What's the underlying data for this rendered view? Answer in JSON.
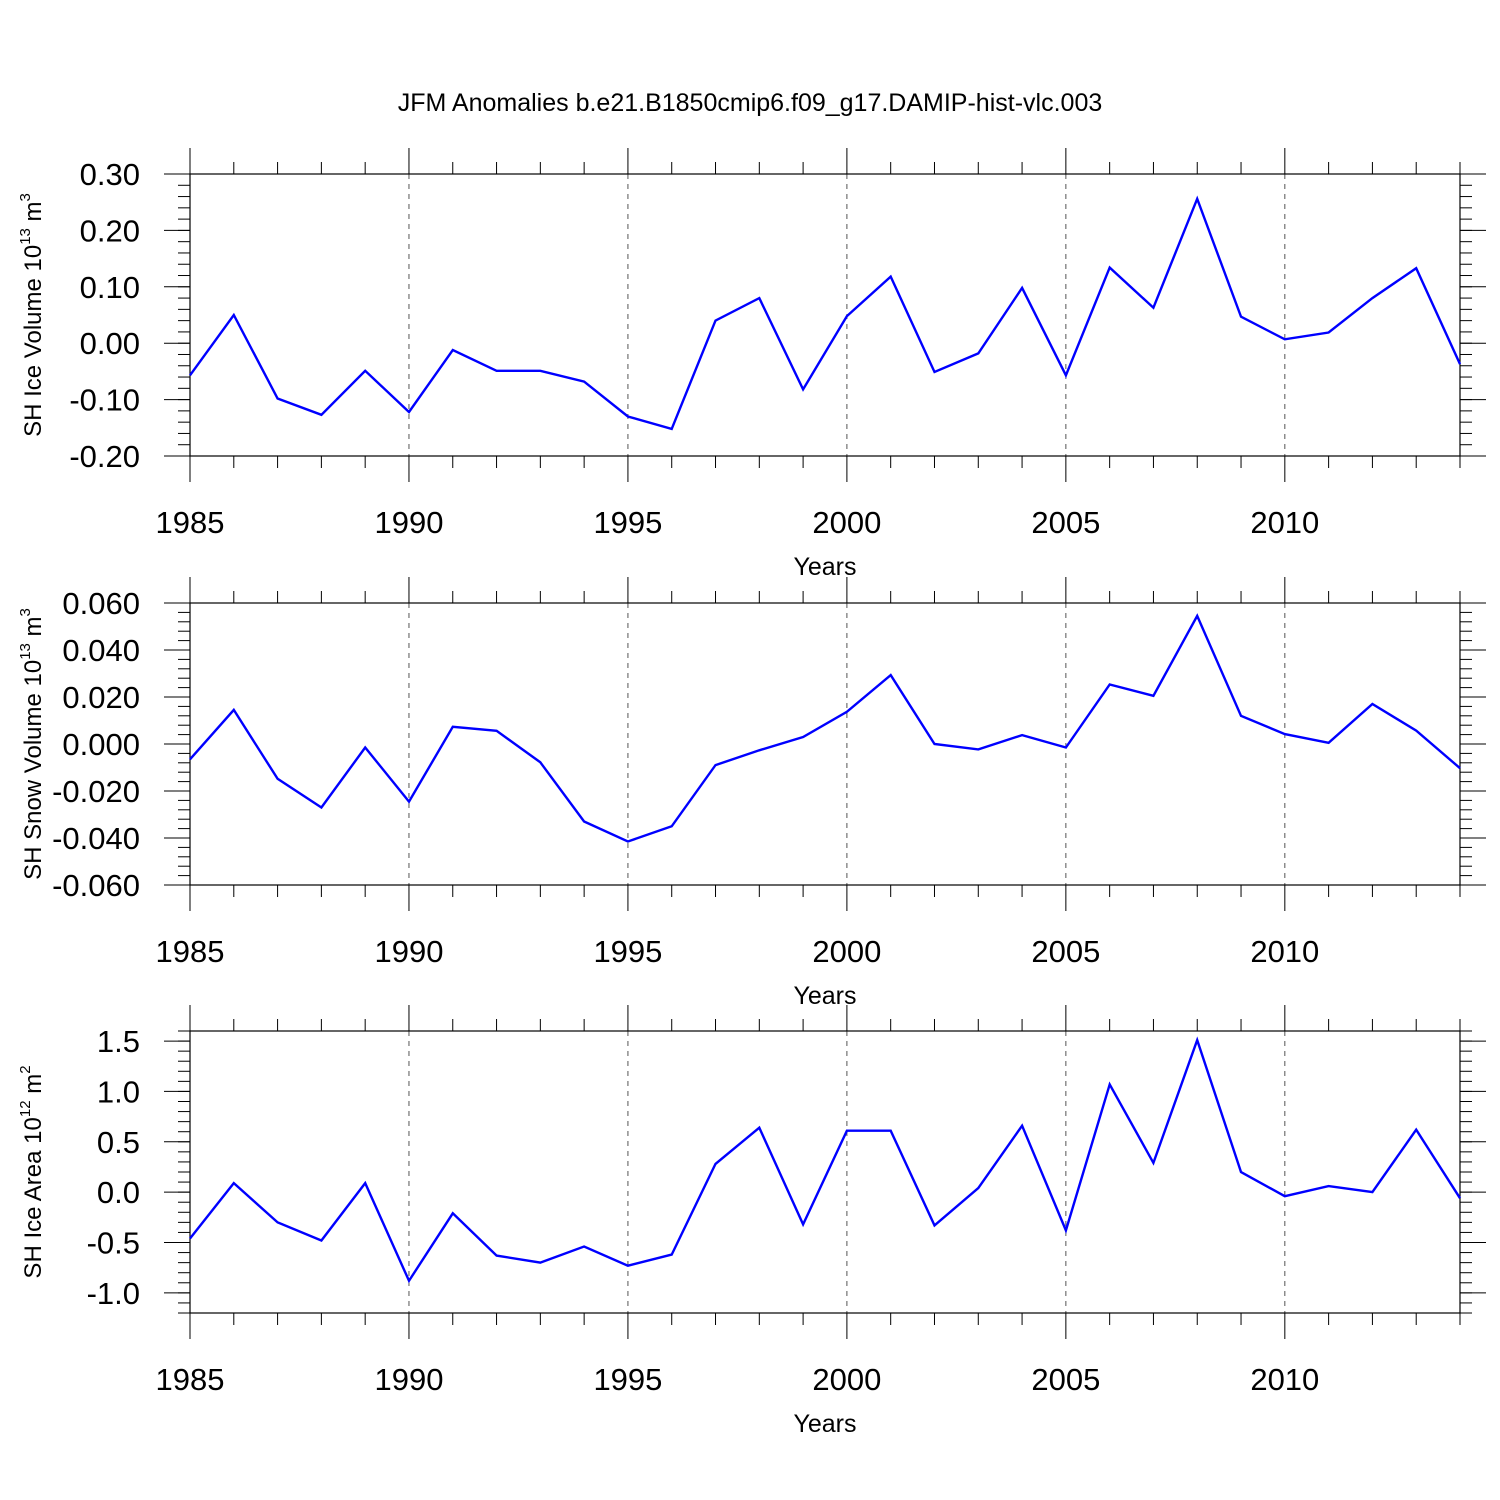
{
  "title": "JFM Anomalies b.e21.B1850cmip6.f09_g17.DAMIP-hist-vlc.003",
  "chart_data": [
    {
      "type": "line",
      "ylabel": {
        "main": "SH Ice Volume 10",
        "exp": "13",
        "unit": " m",
        "unit_exp": "3"
      },
      "xlabel": "Years",
      "xlim": [
        1985,
        2014
      ],
      "ylim": [
        -0.2,
        0.3
      ],
      "yticks": [
        -0.2,
        -0.1,
        0.0,
        0.1,
        0.2,
        0.3
      ],
      "ytick_labels": [
        "-0.20",
        "-0.10",
        "0.00",
        "0.10",
        "0.20",
        "0.30"
      ],
      "xticks": [
        1985,
        1990,
        1995,
        2000,
        2005,
        2010
      ],
      "xtick_labels": [
        "1985",
        "1990",
        "1995",
        "2000",
        "2005",
        "2010"
      ],
      "color": "#0000ff",
      "x": [
        1985,
        1986,
        1987,
        1988,
        1989,
        1990,
        1991,
        1992,
        1993,
        1994,
        1995,
        1996,
        1997,
        1998,
        1999,
        2000,
        2001,
        2002,
        2003,
        2004,
        2005,
        2006,
        2007,
        2008,
        2009,
        2010,
        2011,
        2012,
        2013,
        2014
      ],
      "values": [
        -0.057,
        0.05,
        -0.098,
        -0.127,
        -0.049,
        -0.122,
        -0.012,
        -0.049,
        -0.049,
        -0.068,
        -0.13,
        -0.152,
        0.04,
        0.08,
        -0.082,
        0.048,
        0.118,
        -0.051,
        -0.018,
        0.098,
        -0.057,
        0.134,
        0.063,
        0.256,
        0.047,
        0.007,
        0.019,
        0.08,
        0.133,
        -0.037
      ]
    },
    {
      "type": "line",
      "ylabel": {
        "main": "SH Snow Volume 10",
        "exp": "13",
        "unit": " m",
        "unit_exp": "3"
      },
      "xlabel": "Years",
      "xlim": [
        1985,
        2014
      ],
      "ylim": [
        -0.06,
        0.06
      ],
      "yticks": [
        -0.06,
        -0.04,
        -0.02,
        0.0,
        0.02,
        0.04,
        0.06
      ],
      "ytick_labels": [
        "-0.060",
        "-0.040",
        "-0.020",
        "0.000",
        "0.020",
        "0.040",
        "0.060"
      ],
      "xticks": [
        1985,
        1990,
        1995,
        2000,
        2005,
        2010
      ],
      "xtick_labels": [
        "1985",
        "1990",
        "1995",
        "2000",
        "2005",
        "2010"
      ],
      "color": "#0000ff",
      "x": [
        1985,
        1986,
        1987,
        1988,
        1989,
        1990,
        1991,
        1992,
        1993,
        1994,
        1995,
        1996,
        1997,
        1998,
        1999,
        2000,
        2001,
        2002,
        2003,
        2004,
        2005,
        2006,
        2007,
        2008,
        2009,
        2010,
        2011,
        2012,
        2013,
        2014
      ],
      "values": [
        -0.0065,
        0.0145,
        -0.0148,
        -0.027,
        -0.0015,
        -0.0245,
        0.0073,
        0.0056,
        -0.0078,
        -0.033,
        -0.0415,
        -0.035,
        -0.009,
        -0.0027,
        0.003,
        0.0137,
        0.0293,
        0.0,
        -0.0023,
        0.0038,
        -0.0015,
        0.0253,
        0.0205,
        0.0545,
        0.012,
        0.0042,
        0.0005,
        0.017,
        0.0057,
        -0.0103
      ]
    },
    {
      "type": "line",
      "ylabel": {
        "main": "SH Ice Area 10",
        "exp": "12",
        "unit": " m",
        "unit_exp": "2"
      },
      "xlabel": "Years",
      "xlim": [
        1985,
        2014
      ],
      "ylim": [
        -1.2,
        1.6
      ],
      "yticks": [
        -1.0,
        -0.5,
        0.0,
        0.5,
        1.0,
        1.5
      ],
      "ytick_labels": [
        "-1.0",
        "-0.5",
        "0.0",
        "0.5",
        "1.0",
        "1.5"
      ],
      "xticks": [
        1985,
        1990,
        1995,
        2000,
        2005,
        2010
      ],
      "xtick_labels": [
        "1985",
        "1990",
        "1995",
        "2000",
        "2005",
        "2010"
      ],
      "color": "#0000ff",
      "x": [
        1985,
        1986,
        1987,
        1988,
        1989,
        1990,
        1991,
        1992,
        1993,
        1994,
        1995,
        1996,
        1997,
        1998,
        1999,
        2000,
        2001,
        2002,
        2003,
        2004,
        2005,
        2006,
        2007,
        2008,
        2009,
        2010,
        2011,
        2012,
        2013,
        2014
      ],
      "values": [
        -0.46,
        0.09,
        -0.3,
        -0.48,
        0.09,
        -0.88,
        -0.21,
        -0.63,
        -0.7,
        -0.54,
        -0.73,
        -0.62,
        0.28,
        0.64,
        -0.32,
        0.61,
        0.61,
        -0.33,
        0.04,
        0.66,
        -0.38,
        1.07,
        0.29,
        1.51,
        0.2,
        -0.04,
        0.06,
        0.0,
        0.62,
        -0.06
      ]
    }
  ]
}
